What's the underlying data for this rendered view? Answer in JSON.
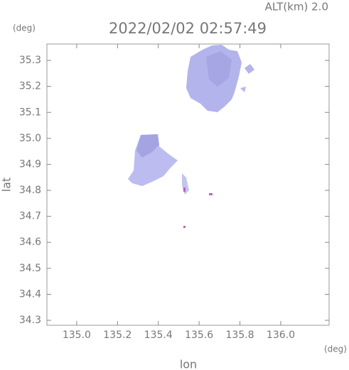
{
  "chart_data": {
    "type": "map",
    "title": "2022/02/02 02:57:49",
    "subtitle": "ALT(km) 2.0",
    "y_unit": "(deg)",
    "x_unit": "(deg)",
    "x_label": "lon",
    "y_label": "lat",
    "xlim": [
      134.854,
      136.237
    ],
    "ylim": [
      34.281,
      35.363
    ],
    "xticks": [
      {
        "value": 135,
        "label": "135.0"
      },
      135.2,
      135.4,
      135.6,
      135.8,
      {
        "value": 136,
        "label": "136.0"
      }
    ],
    "yticks": [
      34.3,
      34.4,
      34.5,
      34.6,
      34.7,
      34.8,
      34.9,
      {
        "value": 35,
        "label": "35.0"
      },
      35.1,
      35.2,
      35.3
    ]
  }
}
